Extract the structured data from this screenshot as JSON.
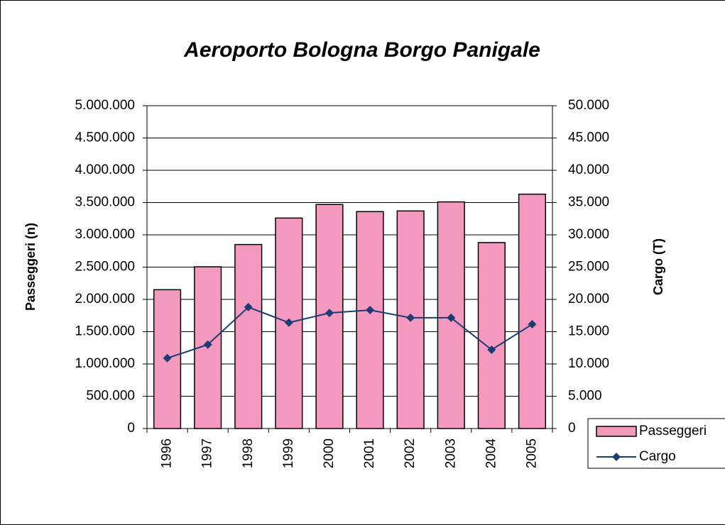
{
  "chart_data": {
    "type": "bar_line",
    "title": "Aeroporto Bologna Borgo Panigale",
    "y_label": "Passeggeri (n)",
    "y2_label": "Cargo (T)",
    "categories": [
      "1996",
      "1997",
      "1998",
      "1999",
      "2000",
      "2001",
      "2002",
      "2003",
      "2004",
      "2005"
    ],
    "series": [
      {
        "name": "Passeggeri",
        "type": "bar",
        "color": "#f49ac1",
        "axis": "y",
        "values": [
          2150000,
          2505000,
          2850000,
          3260000,
          3470000,
          3360000,
          3370000,
          3510000,
          2880000,
          3630000
        ]
      },
      {
        "name": "Cargo",
        "type": "line",
        "color": "#1f3b73",
        "axis": "y2",
        "values": [
          10900,
          13000,
          18800,
          16400,
          17900,
          18350,
          17150,
          17150,
          12200,
          16150
        ]
      }
    ],
    "ylim": [
      0,
      5000000
    ],
    "yticks": [
      0,
      {
        "value": 500000,
        "label": "500.000"
      },
      {
        "value": 1000000,
        "label": "1.000.000"
      },
      {
        "value": 1500000,
        "label": "1.500.000"
      },
      {
        "value": 2000000,
        "label": "2.000.000"
      },
      {
        "value": 2500000,
        "label": "2.500.000"
      },
      {
        "value": 3000000,
        "label": "3.000.000"
      },
      {
        "value": 3500000,
        "label": "3.500.000"
      },
      {
        "value": 4000000,
        "label": "4.000.000"
      },
      {
        "value": 4500000,
        "label": "4.500.000"
      },
      {
        "value": 5000000,
        "label": "5.000.000"
      }
    ],
    "y2lim": [
      0,
      50000
    ],
    "y2ticks": [
      0,
      {
        "value": 5000,
        "label": "5.000"
      },
      {
        "value": 10000,
        "label": "10.000"
      },
      {
        "value": 15000,
        "label": "15.000"
      },
      {
        "value": 20000,
        "label": "20.000"
      },
      {
        "value": 25000,
        "label": "25.000"
      },
      {
        "value": 30000,
        "label": "30.000"
      },
      {
        "value": 35000,
        "label": "35.000"
      },
      {
        "value": 40000,
        "label": "40.000"
      },
      {
        "value": 45000,
        "label": "45.000"
      },
      {
        "value": 50000,
        "label": "50.000"
      }
    ],
    "grid": true,
    "legend": "right"
  }
}
